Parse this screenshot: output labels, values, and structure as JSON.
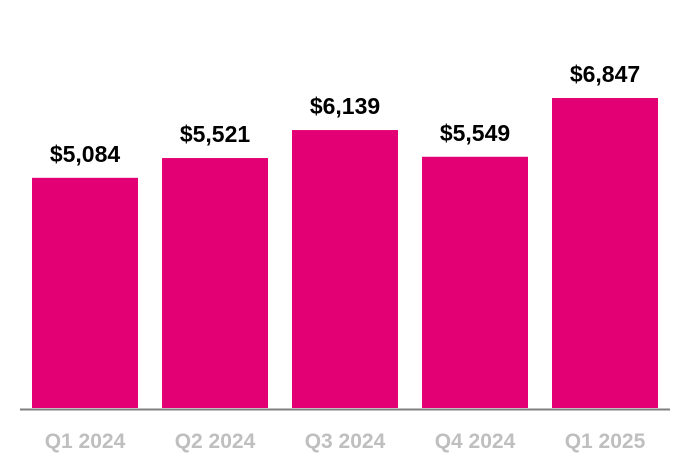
{
  "chart_data": {
    "type": "bar",
    "categories": [
      "Q1 2024",
      "Q2 2024",
      "Q3 2024",
      "Q4 2024",
      "Q1 2025"
    ],
    "values": [
      5084,
      5521,
      6139,
      5549,
      6847
    ],
    "value_labels": [
      "$5,084",
      "$5,521",
      "$6,139",
      "$5,549",
      "$6,847"
    ],
    "color": "#e20074"
  }
}
